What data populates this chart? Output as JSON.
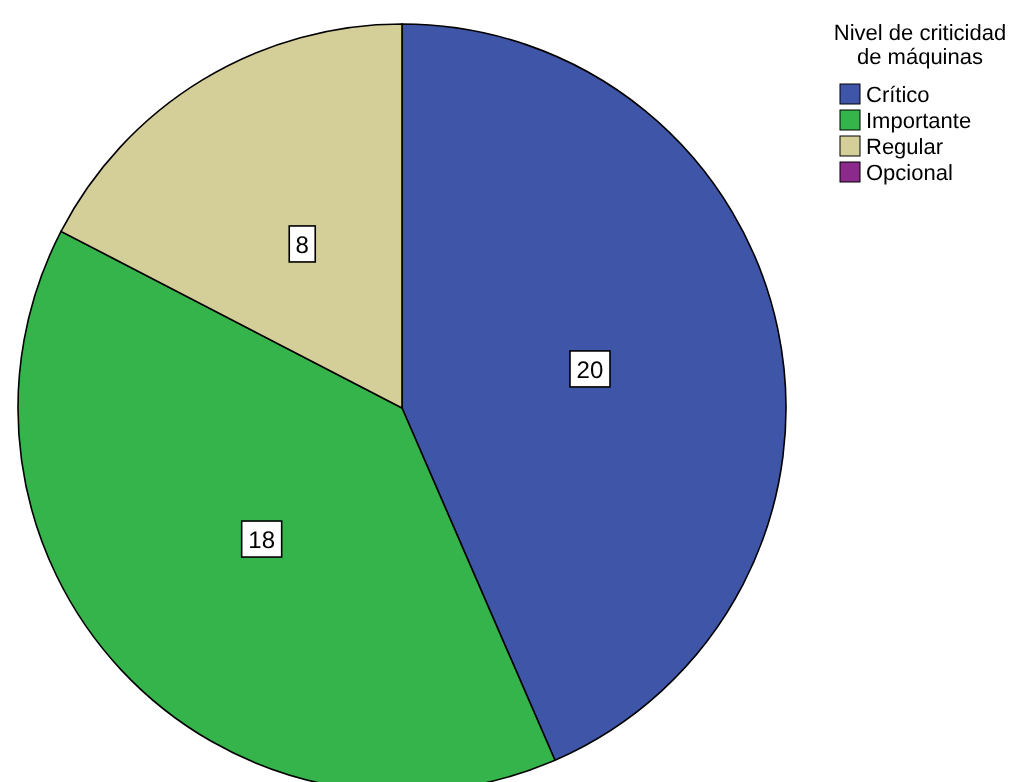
{
  "chart_data": {
    "type": "pie",
    "legend_title": "Nivel de criticidad de máquinas",
    "categories": [
      "Crítico",
      "Importante",
      "Regular",
      "Opcional"
    ],
    "values": [
      20,
      18,
      8,
      0
    ],
    "colors": [
      "#3f56a8",
      "#34b44a",
      "#d4cf98",
      "#8b2a8b"
    ],
    "value_labels": [
      "20",
      "18",
      "8",
      null
    ],
    "legend": "top right"
  }
}
